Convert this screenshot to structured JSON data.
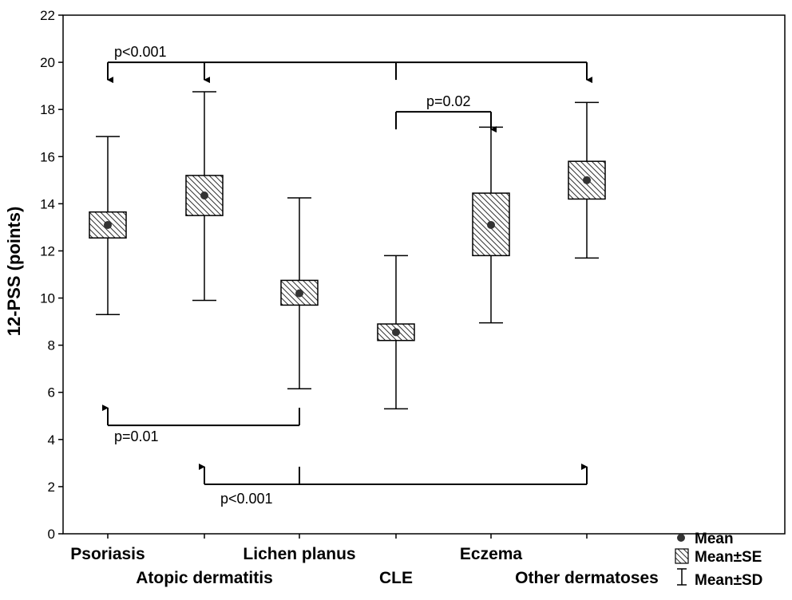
{
  "chart_data": {
    "type": "box",
    "ylabel": "12-PSS (points)",
    "ylim": [
      0,
      22
    ],
    "yticks": [
      "0",
      "2",
      "4",
      "6",
      "8",
      "10",
      "12",
      "14",
      "16",
      "18",
      "20",
      "22"
    ],
    "grid": false,
    "categories": [
      "Psoriasis",
      "Atopic dermatitis",
      "Lichen planus",
      "CLE",
      "Eczema",
      "Other dermatoses"
    ],
    "series": [
      {
        "mean": 13.1,
        "se_low": 12.55,
        "se_high": 13.65,
        "sd_low": 9.3,
        "sd_high": 16.85
      },
      {
        "mean": 14.35,
        "se_low": 13.5,
        "se_high": 15.2,
        "sd_low": 9.9,
        "sd_high": 18.75
      },
      {
        "mean": 10.2,
        "se_low": 9.7,
        "se_high": 10.75,
        "sd_low": 6.15,
        "sd_high": 14.25
      },
      {
        "mean": 8.55,
        "se_low": 8.2,
        "se_high": 8.9,
        "sd_low": 5.3,
        "sd_high": 11.8
      },
      {
        "mean": 13.1,
        "se_low": 11.8,
        "se_high": 14.45,
        "sd_low": 8.95,
        "sd_high": 17.25
      },
      {
        "mean": 15.0,
        "se_low": 14.2,
        "se_high": 15.8,
        "sd_low": 11.7,
        "sd_high": 18.3
      }
    ],
    "legend": {
      "position": "bottom-right",
      "items": [
        "Mean",
        "Mean±SE",
        "Mean±SD"
      ]
    },
    "annotations": [
      {
        "text": "p<0.001",
        "y": 20,
        "from": 3,
        "to": [
          0,
          1,
          5
        ],
        "direction": "down"
      },
      {
        "text": "p=0.02",
        "y": 17.9,
        "from": 3,
        "to": [
          4
        ],
        "direction": "down"
      },
      {
        "text": "p=0.01",
        "y": 4.6,
        "from": 2,
        "to": [
          0
        ],
        "direction": "up"
      },
      {
        "text": "p<0.001",
        "y": 2.1,
        "from": 2,
        "to": [
          1,
          5
        ],
        "direction": "up"
      }
    ]
  }
}
